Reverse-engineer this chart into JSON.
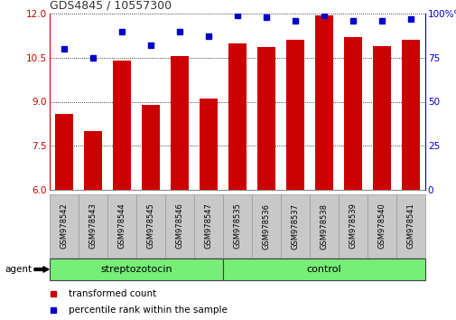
{
  "title": "GDS4845 / 10557300",
  "samples": [
    "GSM978542",
    "GSM978543",
    "GSM978544",
    "GSM978545",
    "GSM978546",
    "GSM978547",
    "GSM978535",
    "GSM978536",
    "GSM978537",
    "GSM978538",
    "GSM978539",
    "GSM978540",
    "GSM978541"
  ],
  "bar_values": [
    8.6,
    8.0,
    10.4,
    8.9,
    10.55,
    9.1,
    11.0,
    10.85,
    11.1,
    11.95,
    11.2,
    10.9,
    11.1
  ],
  "percentile_values": [
    80,
    75,
    90,
    82,
    90,
    87,
    99,
    98,
    96,
    99,
    96,
    96,
    97
  ],
  "group1_label": "streptozotocin",
  "group2_label": "control",
  "group1_count": 6,
  "group2_count": 7,
  "ylim_left": [
    6,
    12
  ],
  "ylim_right": [
    0,
    100
  ],
  "yticks_left": [
    6,
    7.5,
    9,
    10.5,
    12
  ],
  "yticks_right": [
    0,
    25,
    50,
    75,
    100
  ],
  "bar_color": "#CC0000",
  "percentile_color": "#0000CC",
  "agent_label": "agent",
  "legend_bar": "transformed count",
  "legend_percentile": "percentile rank within the sample",
  "group_bg_color": "#77EE77",
  "tick_bg_color": "#C8C8C8",
  "title_color": "#333333",
  "left_axis_color": "#CC0000",
  "right_axis_color": "#0000CC",
  "bg_color": "#FFFFFF"
}
